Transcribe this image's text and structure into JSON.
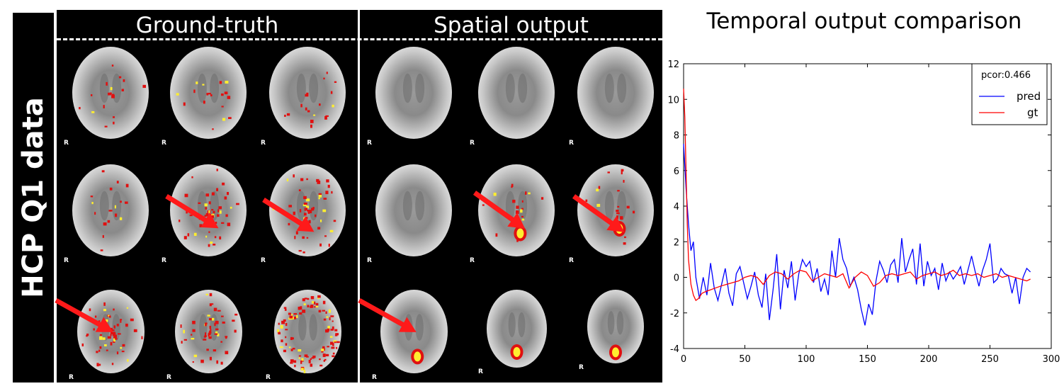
{
  "figure": {
    "row_label": "HCP Q1 data",
    "groups": [
      {
        "title": "Ground-truth"
      },
      {
        "title": "Spatial output"
      }
    ],
    "orientation_marker": "R",
    "annotation_colors": {
      "arrow": "#ff1a1a",
      "activation_low": "#e01010",
      "activation_high": "#ffee30"
    }
  },
  "chart_title": "Temporal output comparison",
  "chart_data": {
    "type": "line",
    "xlim": [
      0,
      300
    ],
    "ylim": [
      -4,
      12
    ],
    "x_ticks": [
      0,
      50,
      100,
      150,
      200,
      250,
      300
    ],
    "y_ticks": [
      -4,
      -2,
      0,
      2,
      4,
      6,
      8,
      10,
      12
    ],
    "grid": false,
    "legend_position": "top-right",
    "legend_title": "pcor:0.466",
    "series": [
      {
        "name": "pred",
        "color": "#0000ff",
        "x": [
          0,
          2,
          4,
          6,
          8,
          10,
          13,
          16,
          19,
          22,
          25,
          28,
          31,
          34,
          37,
          40,
          43,
          46,
          49,
          52,
          55,
          58,
          61,
          64,
          67,
          70,
          73,
          76,
          79,
          82,
          85,
          88,
          91,
          94,
          97,
          100,
          103,
          106,
          109,
          112,
          115,
          118,
          121,
          124,
          127,
          130,
          133,
          136,
          139,
          142,
          145,
          148,
          151,
          154,
          157,
          160,
          163,
          166,
          169,
          172,
          175,
          178,
          181,
          184,
          187,
          190,
          193,
          196,
          199,
          202,
          205,
          208,
          211,
          214,
          217,
          220,
          223,
          226,
          229,
          232,
          235,
          238,
          241,
          244,
          247,
          250,
          253,
          256,
          259,
          262,
          265,
          268,
          271,
          274,
          277,
          280,
          283
        ],
        "values": [
          7.5,
          5.0,
          3.0,
          1.5,
          2.0,
          0.0,
          -1.2,
          0.0,
          -1.0,
          0.8,
          -0.6,
          -1.3,
          -0.4,
          0.5,
          -0.9,
          -1.6,
          0.2,
          0.6,
          -0.3,
          -1.2,
          -0.5,
          0.3,
          -1.0,
          -1.7,
          0.2,
          -2.4,
          -0.7,
          1.3,
          -1.8,
          0.4,
          -0.6,
          0.9,
          -1.3,
          0.2,
          1.0,
          0.6,
          0.9,
          -0.3,
          0.5,
          -0.8,
          -0.1,
          -1.0,
          1.5,
          0.0,
          2.2,
          1.0,
          0.5,
          -0.5,
          0.0,
          -0.7,
          -1.8,
          -2.7,
          -1.5,
          -2.1,
          -0.2,
          0.9,
          0.4,
          -0.3,
          0.7,
          1.0,
          -0.3,
          2.2,
          0.3,
          1.0,
          1.6,
          -0.4,
          1.9,
          -0.5,
          0.9,
          0.1,
          0.5,
          -0.7,
          0.8,
          -0.2,
          0.3,
          -0.1,
          0.2,
          0.6,
          -0.4,
          0.4,
          1.2,
          0.3,
          -0.5,
          0.4,
          1.0,
          1.9,
          -0.3,
          -0.1,
          0.5,
          0.2,
          0.1,
          -0.9,
          0.0,
          -1.5,
          0.0,
          0.5,
          0.3
        ]
      },
      {
        "name": "gt",
        "color": "#ff0000",
        "x": [
          0,
          1,
          2,
          3,
          4,
          6,
          8,
          10,
          12,
          15,
          18,
          22,
          26,
          30,
          35,
          40,
          45,
          50,
          55,
          60,
          65,
          70,
          75,
          80,
          85,
          90,
          95,
          100,
          105,
          110,
          115,
          120,
          125,
          130,
          135,
          140,
          145,
          150,
          155,
          160,
          165,
          170,
          175,
          180,
          185,
          190,
          195,
          200,
          205,
          210,
          215,
          220,
          225,
          230,
          235,
          240,
          245,
          250,
          255,
          260,
          265,
          270,
          275,
          280,
          283
        ],
        "values": [
          10.6,
          9.0,
          6.0,
          3.0,
          1.0,
          -0.4,
          -1.0,
          -1.3,
          -1.2,
          -0.9,
          -0.8,
          -0.7,
          -0.6,
          -0.5,
          -0.4,
          -0.3,
          -0.2,
          0.0,
          0.1,
          0.0,
          -0.4,
          0.1,
          0.3,
          0.2,
          -0.1,
          0.2,
          0.4,
          0.3,
          -0.2,
          0.0,
          0.2,
          0.1,
          0.0,
          0.2,
          -0.6,
          0.0,
          0.3,
          0.1,
          -0.5,
          -0.3,
          0.1,
          0.2,
          0.1,
          0.2,
          0.3,
          -0.1,
          0.1,
          0.2,
          0.3,
          0.1,
          0.2,
          0.4,
          0.1,
          0.2,
          0.1,
          0.2,
          0.0,
          0.1,
          0.2,
          0.0,
          0.1,
          0.0,
          -0.1,
          -0.2,
          -0.1
        ]
      }
    ]
  }
}
